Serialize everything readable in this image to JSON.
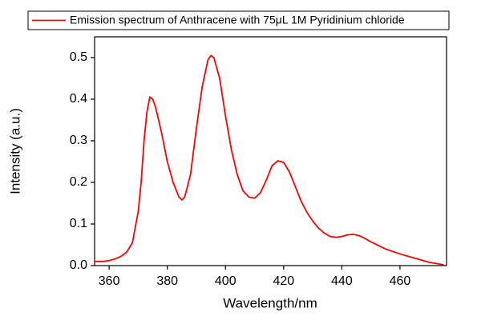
{
  "chart_data": {
    "type": "line",
    "x_label": "Wavelength/nm",
    "y_label": "Intensity (a.u.)",
    "x": [
      355,
      358,
      360,
      362,
      364,
      366,
      368,
      370,
      371,
      372,
      373,
      374,
      375,
      376,
      378,
      380,
      382,
      384,
      385,
      386,
      388,
      390,
      392,
      394,
      395,
      396,
      398,
      400,
      402,
      404,
      406,
      408,
      410,
      412,
      414,
      416,
      418,
      420,
      422,
      424,
      426,
      428,
      430,
      432,
      434,
      436,
      438,
      440,
      442,
      444,
      446,
      448,
      450,
      455,
      460,
      465,
      470,
      475
    ],
    "series": [
      {
        "name": "Emission spectrum of Anthracene with 75μL 1M Pyridinium chloride",
        "color": "#ff0000",
        "values": [
          0.01,
          0.01,
          0.012,
          0.016,
          0.022,
          0.032,
          0.055,
          0.13,
          0.2,
          0.3,
          0.37,
          0.405,
          0.4,
          0.38,
          0.32,
          0.25,
          0.2,
          0.165,
          0.158,
          0.165,
          0.22,
          0.33,
          0.43,
          0.495,
          0.505,
          0.5,
          0.45,
          0.36,
          0.28,
          0.22,
          0.18,
          0.165,
          0.162,
          0.175,
          0.205,
          0.24,
          0.252,
          0.248,
          0.225,
          0.19,
          0.155,
          0.128,
          0.107,
          0.09,
          0.078,
          0.07,
          0.068,
          0.07,
          0.074,
          0.075,
          0.072,
          0.065,
          0.057,
          0.04,
          0.028,
          0.018,
          0.008,
          0.002
        ]
      }
    ],
    "xlim": [
      355,
      476
    ],
    "xticks": [
      360,
      380,
      400,
      420,
      440,
      460
    ],
    "ylim": [
      0,
      0.55
    ],
    "yticks": [
      {
        "value": 0,
        "label": "0.0"
      },
      0.1,
      0.2,
      0.3,
      0.4,
      0.5
    ],
    "legend": "top"
  }
}
